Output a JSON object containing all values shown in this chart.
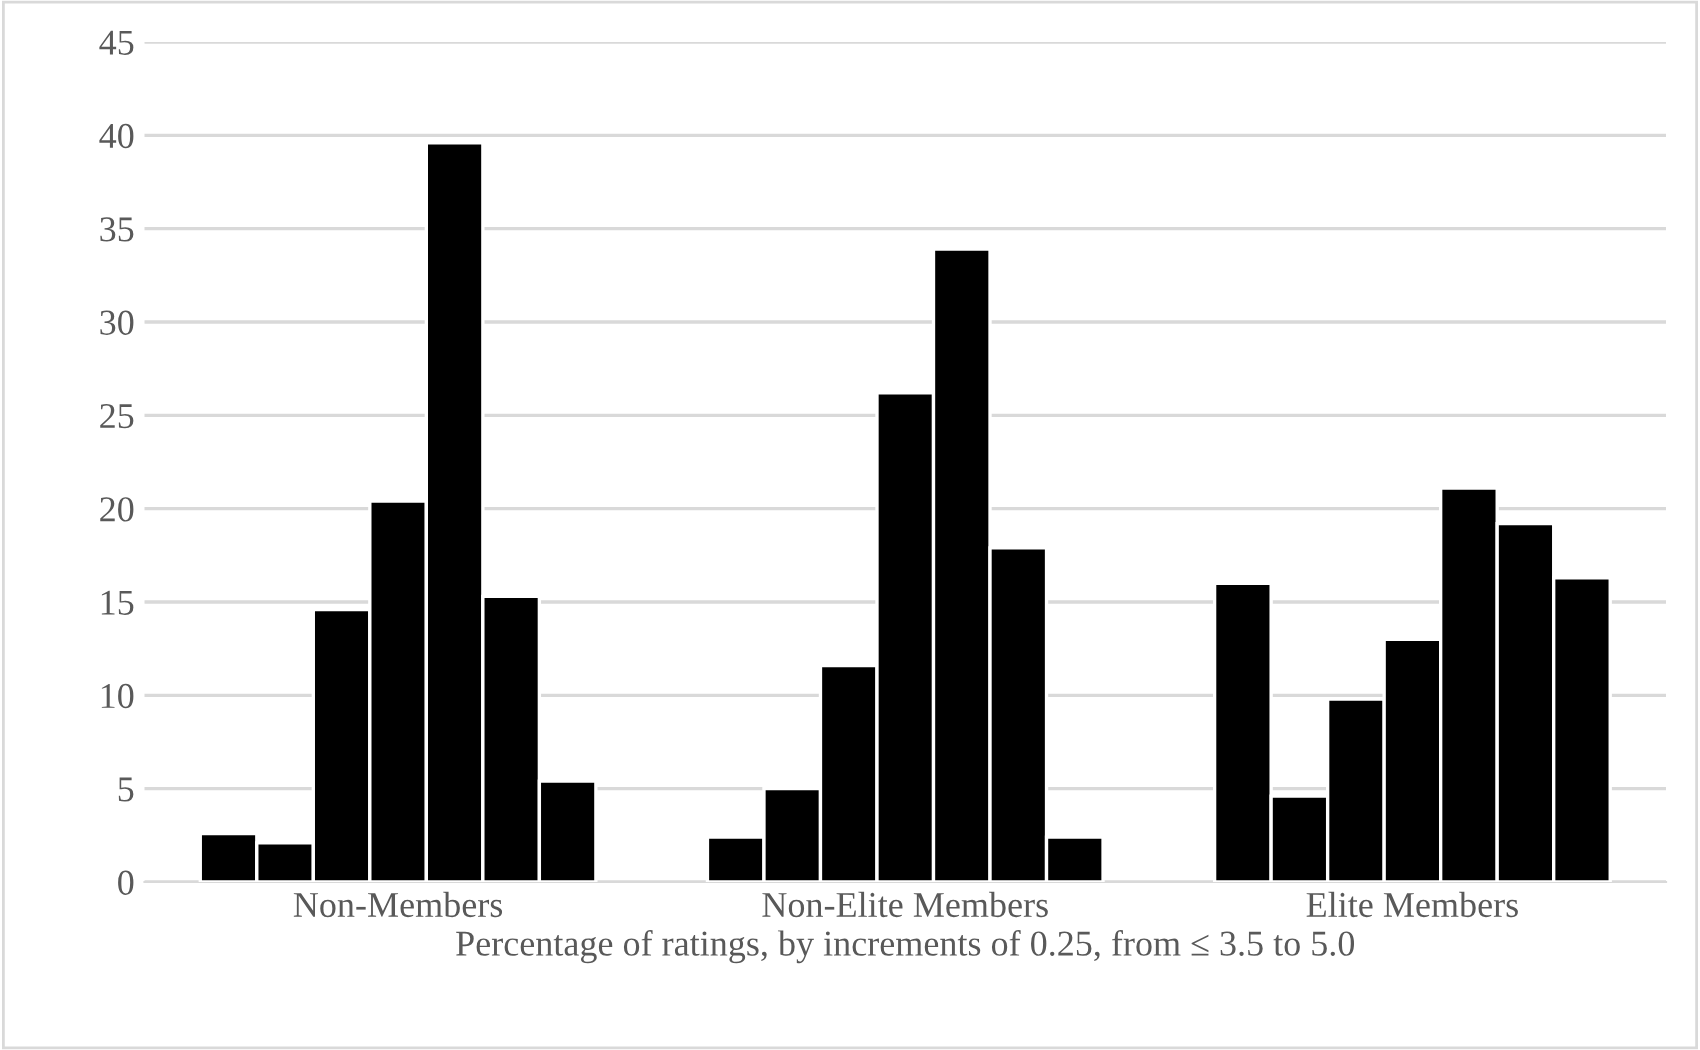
{
  "chart_data": {
    "type": "bar",
    "xlabel": "Percentage of ratings, by increments of 0.25, from ≤ 3.5 to 5.0",
    "categories": [
      "Non-Members",
      "Non-Elite Members",
      "Elite Members"
    ],
    "series": [
      {
        "color": "#000000",
        "values": [
          2.6,
          2.4,
          16.0
        ]
      },
      {
        "color": "#000000",
        "values": [
          2.1,
          5.0,
          4.6
        ]
      },
      {
        "color": "#000000",
        "values": [
          14.6,
          11.6,
          9.8
        ]
      },
      {
        "color": "#000000",
        "values": [
          20.4,
          26.2,
          13.0
        ]
      },
      {
        "color": "#000000",
        "values": [
          39.6,
          33.9,
          21.1
        ]
      },
      {
        "color": "#000000",
        "values": [
          15.3,
          17.9,
          19.2
        ]
      },
      {
        "color": "#000000",
        "values": [
          5.4,
          2.4,
          16.3
        ]
      }
    ],
    "ylim": [
      0,
      45
    ],
    "yticks": [
      0,
      5,
      10,
      15,
      20,
      25,
      30,
      35,
      40,
      45
    ],
    "grid": "y",
    "legend": false
  }
}
